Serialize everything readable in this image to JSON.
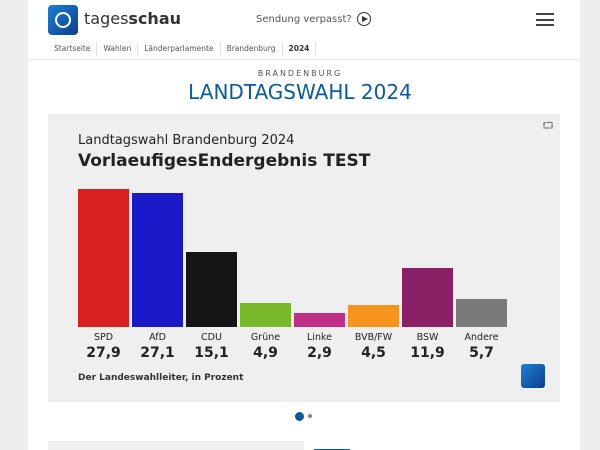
{
  "header": {
    "brand_light": "tages",
    "brand_bold": "schau",
    "missed": "Sendung verpasst?"
  },
  "breadcrumb": [
    "Startseite",
    "Wahlen",
    "Länderparlamente",
    "Brandenburg",
    "2024"
  ],
  "page": {
    "kicker": "BRANDENBURG",
    "title": "LANDTAGSWAHL 2024"
  },
  "chart_data": {
    "type": "bar",
    "title": "Landtagswahl Brandenburg 2024",
    "subtitle": "VorlaeufigesEndergebnis TEST",
    "categories": [
      "SPD",
      "AfD",
      "CDU",
      "Grüne",
      "Linke",
      "BVB/FW",
      "BSW",
      "Andere"
    ],
    "values": [
      27.9,
      27.1,
      15.1,
      4.9,
      2.9,
      4.5,
      11.9,
      5.7
    ],
    "value_labels": [
      "27,9",
      "27,1",
      "15,1",
      "4,9",
      "2,9",
      "4,5",
      "11,9",
      "5,7"
    ],
    "colors": [
      "#d7201f",
      "#1a1ac8",
      "#151515",
      "#78b82a",
      "#c02e86",
      "#f7941d",
      "#8a1f66",
      "#7a7a7a"
    ],
    "source": "Der Landeswahlleiter, in Prozent",
    "ylim": [
      0,
      27.9
    ]
  },
  "carousel": {
    "pages": 2,
    "current": 1
  }
}
